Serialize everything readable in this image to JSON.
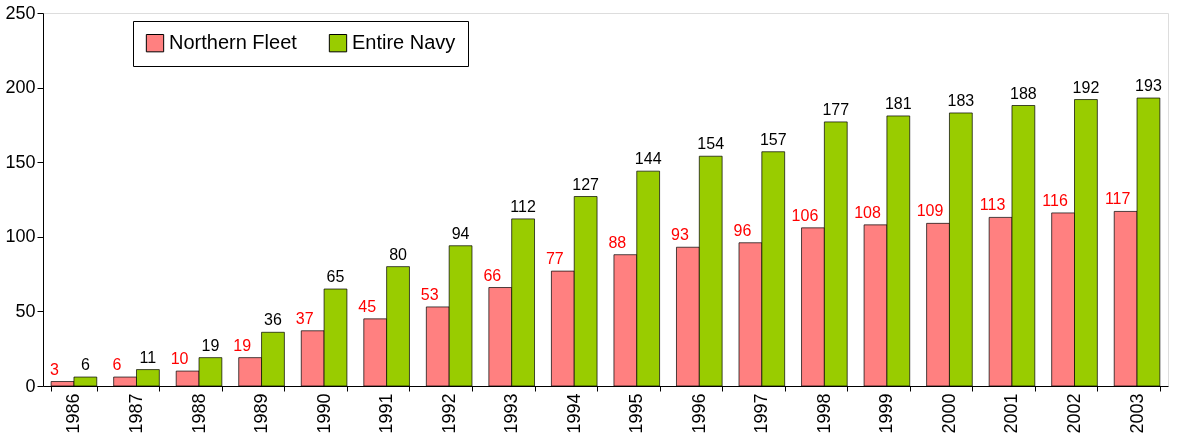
{
  "chart_data": {
    "type": "bar",
    "categories": [
      "1986",
      "1987",
      "1988",
      "1989",
      "1990",
      "1991",
      "1992",
      "1993",
      "1994",
      "1995",
      "1996",
      "1997",
      "1998",
      "1999",
      "2000",
      "2001",
      "2002",
      "2003"
    ],
    "series": [
      {
        "name": "Northern Fleet",
        "color": "#ff8080",
        "values": [
          3,
          6,
          10,
          19,
          37,
          45,
          53,
          66,
          77,
          88,
          93,
          96,
          106,
          108,
          109,
          113,
          116,
          117
        ]
      },
      {
        "name": "Entire Navy",
        "color": "#99cc00",
        "values": [
          6,
          11,
          19,
          36,
          65,
          80,
          94,
          112,
          127,
          144,
          154,
          157,
          177,
          181,
          183,
          188,
          192,
          193
        ]
      }
    ],
    "ylim": [
      0,
      250
    ],
    "yticks": [
      0,
      50,
      100,
      150,
      200,
      250
    ],
    "grid": false,
    "legend": "top left",
    "data_labels": true
  }
}
